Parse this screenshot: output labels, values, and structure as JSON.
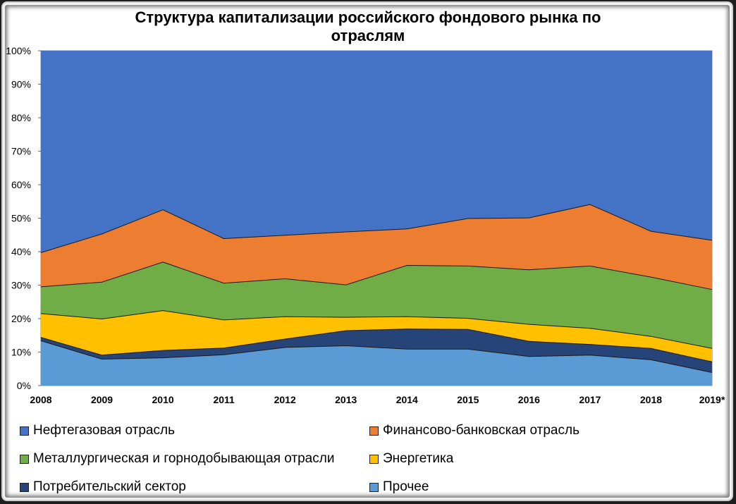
{
  "chart_data": {
    "type": "area",
    "stacked": true,
    "title": "Структура капитализации российского фондового рынка по отраслям",
    "categories": [
      "2008",
      "2009",
      "2010",
      "2011",
      "2012",
      "2013",
      "2014",
      "2015",
      "2016",
      "2017",
      "2018",
      "2019*"
    ],
    "ylim": [
      0,
      100
    ],
    "yticks": [
      "0%",
      "10%",
      "20%",
      "30%",
      "40%",
      "50%",
      "60%",
      "70%",
      "80%",
      "90%",
      "100%"
    ],
    "series": [
      {
        "name": "Прочее",
        "color": "#5b9bd5",
        "values": [
          13.5,
          8,
          8.4,
          9.3,
          11.5,
          12,
          11,
          11,
          8.8,
          9.2,
          7.8,
          4
        ]
      },
      {
        "name": "Потребительский  сектор",
        "color": "#264478",
        "values": [
          1,
          1.2,
          2.2,
          2,
          2.5,
          4.5,
          6,
          5.9,
          4.5,
          3.2,
          3.4,
          3.2
        ]
      },
      {
        "name": "Энергетика",
        "color": "#ffc000",
        "values": [
          7.1,
          10.8,
          11.9,
          8.4,
          6.7,
          4,
          3.7,
          3.3,
          5.1,
          4.8,
          3.6,
          4
        ]
      },
      {
        "name": "Металлургическая  и горнодобывающая отрасли",
        "color": "#70ad47",
        "values": [
          8,
          11,
          14.5,
          11,
          11.3,
          9.7,
          15.3,
          15.6,
          16.3,
          18.6,
          17.7,
          17.6
        ]
      },
      {
        "name": "Финансово-банковская  отрасль",
        "color": "#ed7d31",
        "values": [
          10.2,
          14.4,
          15.6,
          13.3,
          13,
          15.8,
          10.9,
          14.2,
          15.5,
          18.4,
          13.7,
          14.7
        ]
      },
      {
        "name": "Нефтегазовая отрасль",
        "color": "#4472c4",
        "values": [
          60.2,
          54.6,
          47.4,
          56,
          55,
          54,
          53.1,
          50,
          49.8,
          45.8,
          53.8,
          56.5
        ]
      }
    ],
    "legend_order": [
      "Нефтегазовая отрасль",
      "Финансово-банковская  отрасль",
      "Металлургическая  и горнодобывающая отрасли",
      "Энергетика",
      "Потребительский  сектор",
      "Прочее"
    ]
  }
}
